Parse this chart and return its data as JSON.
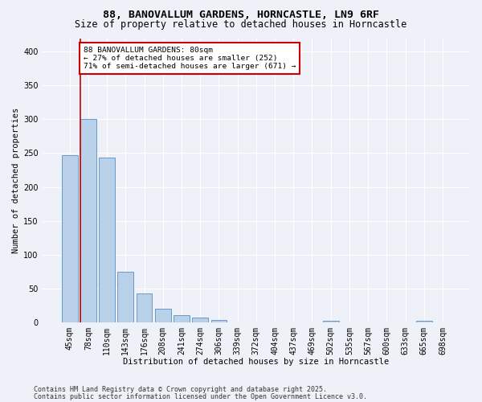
{
  "title_line1": "88, BANOVALLUM GARDENS, HORNCASTLE, LN9 6RF",
  "title_line2": "Size of property relative to detached houses in Horncastle",
  "xlabel": "Distribution of detached houses by size in Horncastle",
  "ylabel": "Number of detached properties",
  "categories": [
    "45sqm",
    "78sqm",
    "110sqm",
    "143sqm",
    "176sqm",
    "208sqm",
    "241sqm",
    "274sqm",
    "306sqm",
    "339sqm",
    "372sqm",
    "404sqm",
    "437sqm",
    "469sqm",
    "502sqm",
    "535sqm",
    "567sqm",
    "600sqm",
    "633sqm",
    "665sqm",
    "698sqm"
  ],
  "values": [
    247,
    300,
    243,
    75,
    43,
    20,
    10,
    7,
    3,
    0,
    0,
    0,
    0,
    0,
    2,
    0,
    0,
    0,
    0,
    2,
    0
  ],
  "bar_color": "#b8d0e8",
  "bar_edge_color": "#6699cc",
  "vline_color": "#cc0000",
  "vline_x": 0.55,
  "annotation_text": "88 BANOVALLUM GARDENS: 80sqm\n← 27% of detached houses are smaller (252)\n71% of semi-detached houses are larger (671) →",
  "annotation_box_color": "#ffffff",
  "annotation_edge_color": "#cc0000",
  "ylim": [
    0,
    420
  ],
  "yticks": [
    0,
    50,
    100,
    150,
    200,
    250,
    300,
    350,
    400
  ],
  "footer_line1": "Contains HM Land Registry data © Crown copyright and database right 2025.",
  "footer_line2": "Contains public sector information licensed under the Open Government Licence v3.0.",
  "bg_color": "#eef2f8",
  "grid_color": "#ffffff",
  "title_fontsize": 9.5,
  "subtitle_fontsize": 8.5,
  "axis_label_fontsize": 7.5,
  "tick_fontsize": 7,
  "annotation_fontsize": 6.8,
  "footer_fontsize": 6
}
